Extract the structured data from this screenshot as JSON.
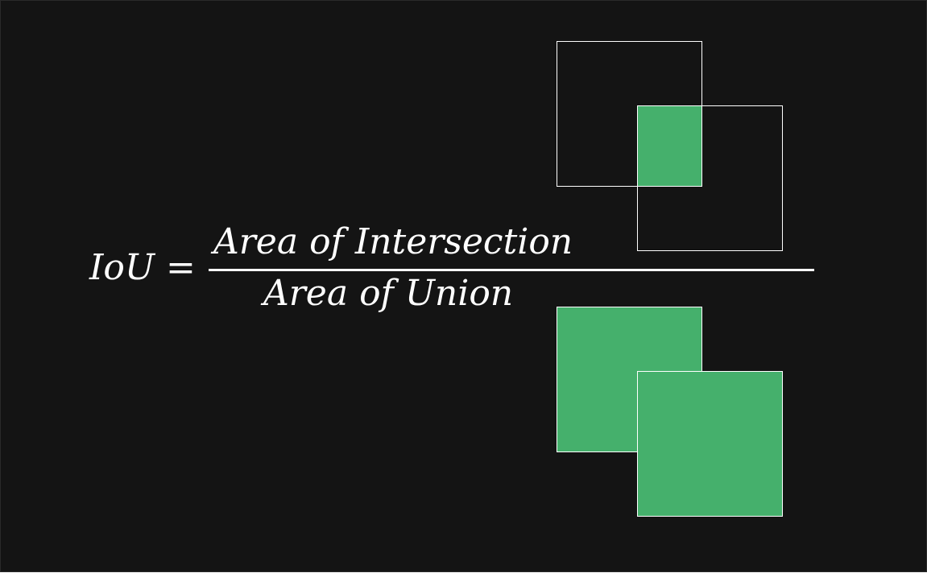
{
  "formula": {
    "lhs": "IoU =",
    "numerator": "Area of Intersection",
    "denominator": "Area of Union"
  },
  "colors": {
    "background": "#141414",
    "box_outline": "#ffffff",
    "fill_green": "#45b06c",
    "text": "#ffffff"
  }
}
